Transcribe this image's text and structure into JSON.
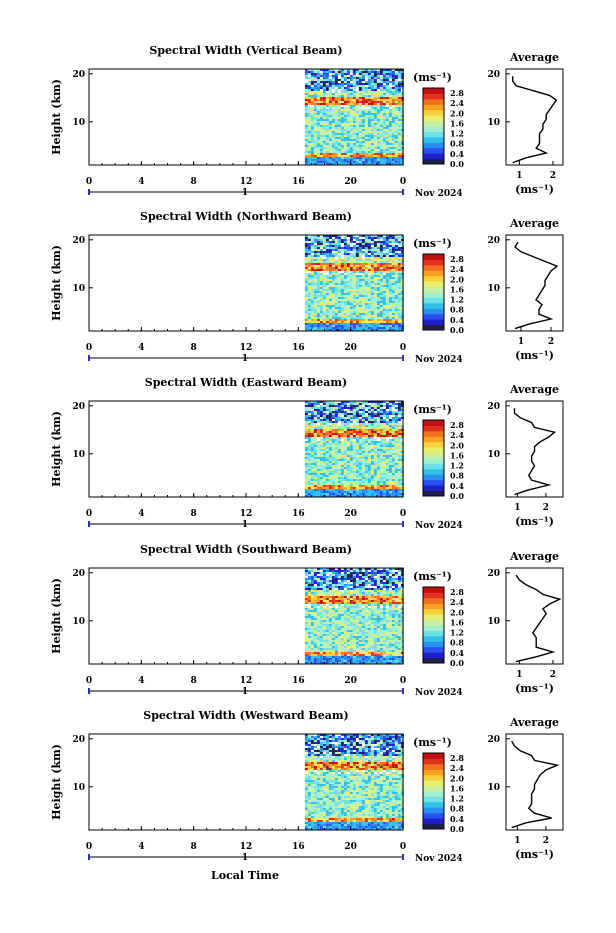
{
  "colors": {
    "colorbar": [
      "#1e1e50",
      "#2020c8",
      "#2a50f0",
      "#2a90f0",
      "#30c0e8",
      "#6ee0e8",
      "#a0f0d0",
      "#c8f0a0",
      "#e8f070",
      "#f8d040",
      "#f8a020",
      "#f07020",
      "#e03020",
      "#c01010"
    ],
    "profile": "#000000"
  },
  "x_axis_label": "Local Time",
  "chart_data": [
    {
      "type": "heatmap",
      "title": "Spectral Width (Vertical Beam)",
      "ylabel": "Height (km)",
      "xticks": [
        "0",
        "4",
        "8",
        "12",
        "16",
        "20",
        "0"
      ],
      "xlim": [
        0,
        24
      ],
      "yticks": [
        "20",
        "10"
      ],
      "ylim": [
        1,
        21
      ],
      "day_label": "1",
      "date_label": "Nov 2024",
      "colorbar": {
        "unit": "(ms⁻¹)",
        "ticks": [
          "2.8",
          "2.4",
          "2.0",
          "1.6",
          "1.2",
          "0.8",
          "0.4",
          "0.0"
        ],
        "range": [
          0,
          3.0
        ]
      },
      "data_start_hour": 16.5,
      "data_end_hour": 24,
      "profile": {
        "title": "Average",
        "xlabel": "(ms⁻¹)",
        "xticks": [
          "1",
          "2"
        ],
        "xlim": [
          0.6,
          2.3
        ],
        "yticks": [
          "20",
          "10"
        ],
        "heights": [
          1.5,
          2.5,
          3.5,
          4.5,
          5.5,
          6.5,
          7.5,
          8.5,
          9.5,
          10.5,
          11.5,
          12.5,
          13.5,
          14.5,
          15.5,
          16.5,
          17.5,
          18.5,
          19.5
        ],
        "values": [
          0.8,
          1.2,
          1.8,
          1.5,
          1.6,
          1.6,
          1.6,
          1.7,
          1.7,
          1.8,
          1.8,
          1.9,
          2.0,
          2.1,
          1.9,
          1.4,
          0.9,
          0.8,
          0.8
        ]
      }
    },
    {
      "type": "heatmap",
      "title": "Spectral Width (Northward Beam)",
      "ylabel": "Height (km)",
      "xticks": [
        "0",
        "4",
        "8",
        "12",
        "16",
        "20",
        "0"
      ],
      "xlim": [
        0,
        24
      ],
      "yticks": [
        "20",
        "10"
      ],
      "ylim": [
        1,
        21
      ],
      "day_label": "1",
      "date_label": "Nov 2024",
      "colorbar": {
        "unit": "(ms⁻¹)",
        "ticks": [
          "2.8",
          "2.4",
          "2.0",
          "1.6",
          "1.2",
          "0.8",
          "0.4",
          "0.0"
        ],
        "range": [
          0,
          3.0
        ]
      },
      "data_start_hour": 16.5,
      "data_end_hour": 24,
      "profile": {
        "title": "Average",
        "xlabel": "(ms⁻¹)",
        "xticks": [
          "1",
          "2"
        ],
        "xlim": [
          0.5,
          2.4
        ],
        "yticks": [
          "20",
          "10"
        ],
        "heights": [
          1.5,
          2.5,
          3.5,
          4.5,
          5.5,
          6.5,
          7.5,
          8.5,
          9.5,
          10.5,
          11.5,
          12.5,
          13.5,
          14.5,
          15.5,
          16.5,
          17.5,
          18.5,
          19.5
        ],
        "values": [
          0.8,
          1.3,
          2.0,
          1.6,
          1.6,
          1.7,
          1.5,
          1.6,
          1.7,
          1.8,
          1.8,
          1.9,
          2.0,
          2.2,
          1.8,
          1.4,
          1.0,
          0.8,
          0.9
        ]
      }
    },
    {
      "type": "heatmap",
      "title": "Spectral Width (Eastward Beam)",
      "ylabel": "Height (km)",
      "xticks": [
        "0",
        "4",
        "8",
        "12",
        "16",
        "20",
        "0"
      ],
      "xlim": [
        0,
        24
      ],
      "yticks": [
        "20",
        "10"
      ],
      "ylim": [
        1,
        21
      ],
      "day_label": "1",
      "date_label": "Nov 2024",
      "colorbar": {
        "unit": "(ms⁻¹)",
        "ticks": [
          "2.8",
          "2.4",
          "2.0",
          "1.6",
          "1.2",
          "0.8",
          "0.4",
          "0.0"
        ],
        "range": [
          0,
          3.0
        ]
      },
      "data_start_hour": 16.5,
      "data_end_hour": 24,
      "profile": {
        "title": "Average",
        "xlabel": "(ms⁻¹)",
        "xticks": [
          "1",
          "2"
        ],
        "xlim": [
          0.6,
          2.6
        ],
        "yticks": [
          "20",
          "10"
        ],
        "heights": [
          1.5,
          2.5,
          3.5,
          4.5,
          5.5,
          6.5,
          7.5,
          8.5,
          9.5,
          10.5,
          11.5,
          12.5,
          13.5,
          14.5,
          15.5,
          16.5,
          17.5,
          18.5,
          19.5
        ],
        "values": [
          0.9,
          1.4,
          2.1,
          1.5,
          1.4,
          1.5,
          1.6,
          1.5,
          1.5,
          1.6,
          1.6,
          1.8,
          2.1,
          2.3,
          1.6,
          1.5,
          1.1,
          0.9,
          0.9
        ]
      }
    },
    {
      "type": "heatmap",
      "title": "Spectral Width (Southward Beam)",
      "ylabel": "Height (km)",
      "xticks": [
        "0",
        "4",
        "8",
        "12",
        "16",
        "20",
        "0"
      ],
      "xlim": [
        0,
        24
      ],
      "yticks": [
        "20",
        "10"
      ],
      "ylim": [
        1,
        21
      ],
      "day_label": "1",
      "date_label": "Nov 2024",
      "colorbar": {
        "unit": "(ms⁻¹)",
        "ticks": [
          "2.8",
          "2.4",
          "2.0",
          "1.6",
          "1.2",
          "0.8",
          "0.4",
          "0.0"
        ],
        "range": [
          0,
          3.0
        ]
      },
      "data_start_hour": 16.5,
      "data_end_hour": 24,
      "profile": {
        "title": "Average",
        "xlabel": "(ms⁻¹)",
        "xticks": [
          "1",
          "2"
        ],
        "xlim": [
          0.6,
          2.3
        ],
        "yticks": [
          "20",
          "10"
        ],
        "heights": [
          1.5,
          2.5,
          3.5,
          4.5,
          5.5,
          6.5,
          7.5,
          8.5,
          9.5,
          10.5,
          11.5,
          12.5,
          13.5,
          14.5,
          15.5,
          16.5,
          17.5,
          18.5,
          19.5
        ],
        "values": [
          0.9,
          1.5,
          2.0,
          1.5,
          1.5,
          1.5,
          1.4,
          1.5,
          1.6,
          1.7,
          1.8,
          1.7,
          1.9,
          2.2,
          1.7,
          1.5,
          1.2,
          1.0,
          0.9
        ]
      }
    },
    {
      "type": "heatmap",
      "title": "Spectral Width (Westward Beam)",
      "ylabel": "Height (km)",
      "xticks": [
        "0",
        "4",
        "8",
        "12",
        "16",
        "20",
        "0"
      ],
      "xlim": [
        0,
        24
      ],
      "yticks": [
        "20",
        "10"
      ],
      "ylim": [
        1,
        21
      ],
      "day_label": "1",
      "date_label": "Nov 2024",
      "colorbar": {
        "unit": "(ms⁻¹)",
        "ticks": [
          "2.8",
          "2.4",
          "2.0",
          "1.6",
          "1.2",
          "0.8",
          "0.4",
          "0.0"
        ],
        "range": [
          0,
          3.0
        ]
      },
      "data_start_hour": 16.5,
      "data_end_hour": 24,
      "profile": {
        "title": "Average",
        "xlabel": "(ms⁻¹)",
        "xticks": [
          "1",
          "2"
        ],
        "xlim": [
          0.6,
          2.6
        ],
        "yticks": [
          "20",
          "10"
        ],
        "heights": [
          1.5,
          2.5,
          3.5,
          4.5,
          5.5,
          6.5,
          7.5,
          8.5,
          9.5,
          10.5,
          11.5,
          12.5,
          13.5,
          14.5,
          15.5,
          16.5,
          17.5,
          18.5,
          19.5
        ],
        "values": [
          0.8,
          1.3,
          2.2,
          1.6,
          1.4,
          1.5,
          1.5,
          1.5,
          1.6,
          1.6,
          1.7,
          1.8,
          2.0,
          2.4,
          1.6,
          1.5,
          1.1,
          0.9,
          0.8
        ]
      }
    }
  ]
}
